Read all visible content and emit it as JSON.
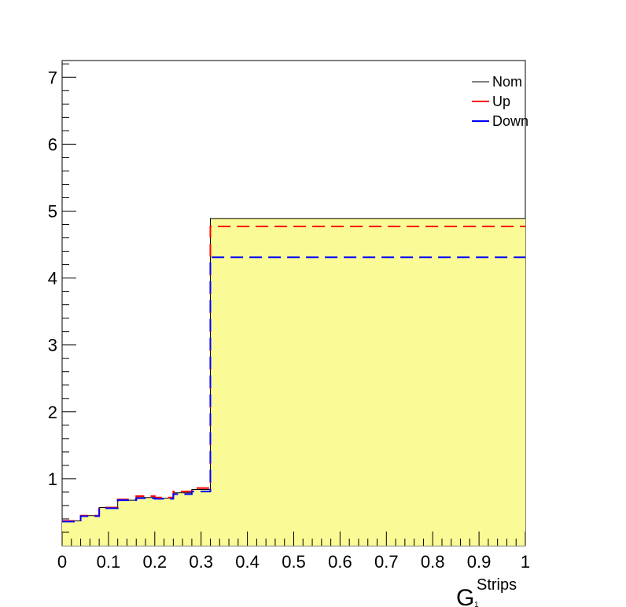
{
  "chart_data": {
    "type": "line",
    "xlim": [
      0,
      1
    ],
    "ylim": [
      0,
      7.25
    ],
    "x_ticks": [
      0,
      0.1,
      0.2,
      0.3,
      0.4,
      0.5,
      0.6,
      0.7,
      0.8,
      0.9,
      1
    ],
    "x_tick_labels": [
      "0",
      "0.1",
      "0.2",
      "0.3",
      "0.4",
      "0.5",
      "0.6",
      "0.7",
      "0.8",
      "0.9",
      "1"
    ],
    "y_ticks": [
      1,
      2,
      3,
      4,
      5,
      6,
      7
    ],
    "y_tick_labels": [
      "1",
      "2",
      "3",
      "4",
      "5",
      "6",
      "7"
    ],
    "xlabel": {
      "main": "G",
      "superscript": "Strips",
      "subscript": "1"
    },
    "ylabel": "",
    "grid": false,
    "legend_position": "top-right",
    "bin_edges": [
      0,
      0.04,
      0.08,
      0.12,
      0.16,
      0.2,
      0.24,
      0.28,
      0.32,
      1.0
    ],
    "series": [
      {
        "name": "Nom",
        "color": "#000000",
        "style": "solid",
        "fill": "#fafa96",
        "values": [
          0.37,
          0.45,
          0.57,
          0.68,
          0.72,
          0.71,
          0.79,
          0.84,
          4.89
        ]
      },
      {
        "name": "Up",
        "color": "#ff0000",
        "style": "dashed",
        "values": [
          0.37,
          0.45,
          0.57,
          0.69,
          0.74,
          0.72,
          0.81,
          0.86,
          4.77
        ]
      },
      {
        "name": "Down",
        "color": "#0000ff",
        "style": "dashed",
        "values": [
          0.36,
          0.44,
          0.56,
          0.68,
          0.71,
          0.7,
          0.77,
          0.81,
          4.31
        ]
      }
    ]
  }
}
